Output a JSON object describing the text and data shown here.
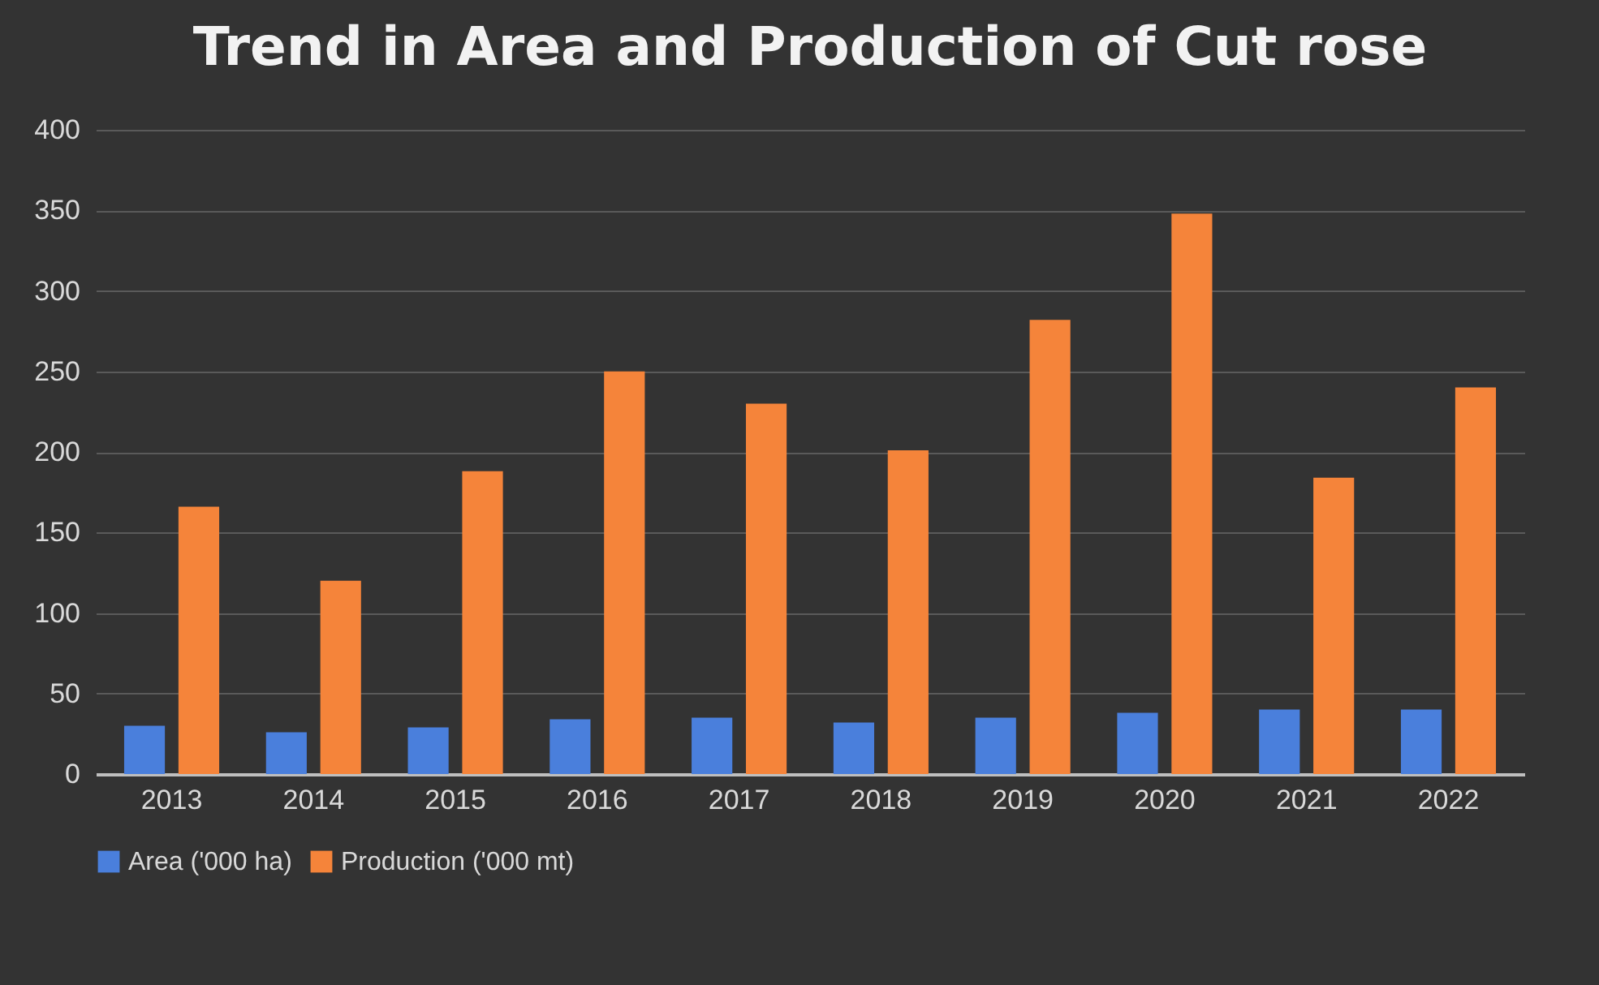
{
  "chart_data": {
    "type": "bar",
    "title": "Trend in Area and Production of Cut rose",
    "categories": [
      "2013",
      "2014",
      "2015",
      "2016",
      "2017",
      "2018",
      "2019",
      "2020",
      "2021",
      "2022"
    ],
    "series": [
      {
        "name": "Area ('000 ha)",
        "color": "#4a7fdc",
        "values": [
          30,
          26,
          29,
          34,
          35,
          32,
          35,
          38,
          40,
          40
        ]
      },
      {
        "name": "Production ('000 mt)",
        "color": "#f5843a",
        "values": [
          166,
          120,
          188,
          250,
          230,
          201,
          282,
          348,
          184,
          240
        ]
      }
    ],
    "ylim": [
      0,
      400
    ],
    "yticks": [
      0,
      50,
      100,
      150,
      200,
      250,
      300,
      350,
      400
    ],
    "grid": "y",
    "legend": "bottom"
  }
}
